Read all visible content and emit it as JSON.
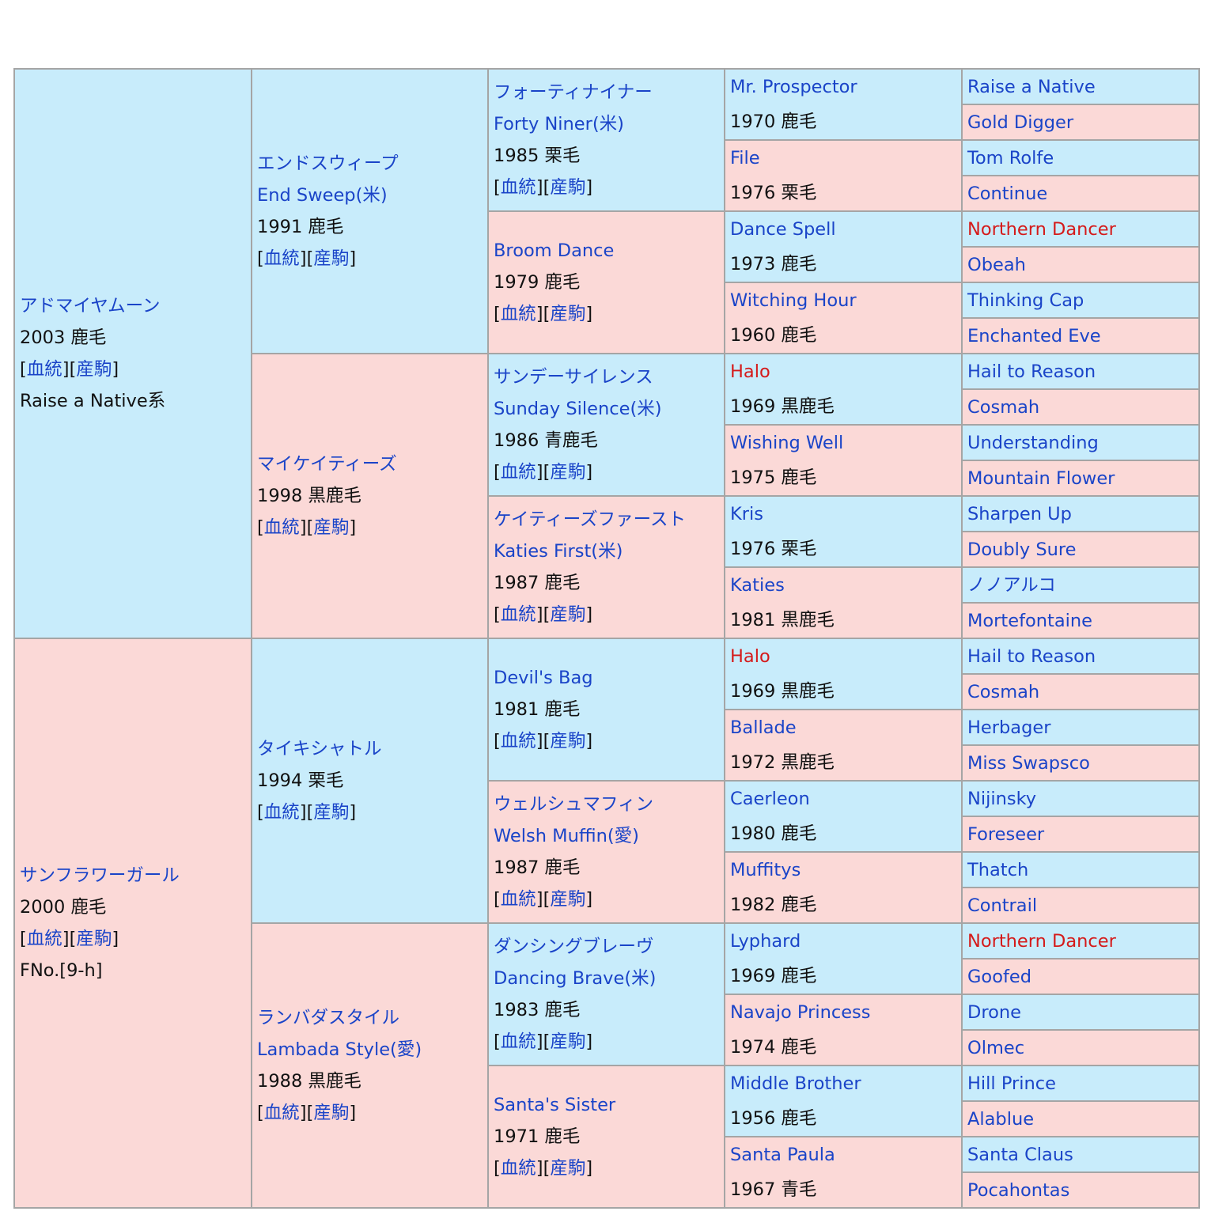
{
  "pedigree": {
    "gen1": [
      {
        "name": "アドマイヤムーン",
        "detail": "2003 鹿毛",
        "extra": "Raise a Native系"
      },
      {
        "name": "サンフラワーガール",
        "detail": "2000 鹿毛",
        "extra": "FNo.[9-h]"
      }
    ],
    "gen2": [
      {
        "name": "エンドスウィープ",
        "alt": "End Sweep(米)",
        "detail": "1991 鹿毛"
      },
      {
        "name": "マイケイティーズ",
        "detail": "1998 黒鹿毛"
      },
      {
        "name": "タイキシャトル",
        "detail": "1994 栗毛"
      },
      {
        "name": "ランバダスタイル",
        "alt": "Lambada Style(愛)",
        "detail": "1988 黒鹿毛"
      }
    ],
    "gen3": [
      {
        "name": "フォーティナイナー",
        "alt": "Forty Niner(米)",
        "detail": "1985 栗毛"
      },
      {
        "name": "Broom Dance",
        "detail": "1979 鹿毛"
      },
      {
        "name": "サンデーサイレンス",
        "alt": "Sunday Silence(米)",
        "detail": "1986 青鹿毛"
      },
      {
        "name": "ケイティーズファースト",
        "alt": "Katies First(米)",
        "detail": "1987 鹿毛"
      },
      {
        "name": "Devil's Bag",
        "detail": "1981 鹿毛"
      },
      {
        "name": "ウェルシュマフィン",
        "alt": "Welsh Muffin(愛)",
        "detail": "1987 鹿毛"
      },
      {
        "name": "ダンシングブレーヴ",
        "alt": "Dancing Brave(米)",
        "detail": "1983 鹿毛"
      },
      {
        "name": "Santa's Sister",
        "detail": "1971 鹿毛"
      }
    ],
    "gen4": [
      {
        "name": "Mr. Prospector",
        "detail": "1970 鹿毛",
        "highlight": false
      },
      {
        "name": "File",
        "detail": "1976 栗毛",
        "highlight": false
      },
      {
        "name": "Dance Spell",
        "detail": "1973 鹿毛",
        "highlight": false
      },
      {
        "name": "Witching Hour",
        "detail": "1960 鹿毛",
        "highlight": false
      },
      {
        "name": "Halo",
        "detail": "1969 黒鹿毛",
        "highlight": true
      },
      {
        "name": "Wishing Well",
        "detail": "1975 鹿毛",
        "highlight": false
      },
      {
        "name": "Kris",
        "detail": "1976 栗毛",
        "highlight": false
      },
      {
        "name": "Katies",
        "detail": "1981 黒鹿毛",
        "highlight": false
      },
      {
        "name": "Halo",
        "detail": "1969 黒鹿毛",
        "highlight": true
      },
      {
        "name": "Ballade",
        "detail": "1972 黒鹿毛",
        "highlight": false
      },
      {
        "name": "Caerleon",
        "detail": "1980 鹿毛",
        "highlight": false
      },
      {
        "name": "Muffitys",
        "detail": "1982 鹿毛",
        "highlight": false
      },
      {
        "name": "Lyphard",
        "detail": "1969 鹿毛",
        "highlight": false
      },
      {
        "name": "Navajo Princess",
        "detail": "1974 鹿毛",
        "highlight": false
      },
      {
        "name": "Middle Brother",
        "detail": "1956 鹿毛",
        "highlight": false
      },
      {
        "name": "Santa Paula",
        "detail": "1967 青毛",
        "highlight": false
      }
    ],
    "gen5": [
      {
        "name": "Raise a Native",
        "highlight": false
      },
      {
        "name": "Gold Digger",
        "highlight": false
      },
      {
        "name": "Tom Rolfe",
        "highlight": false
      },
      {
        "name": "Continue",
        "highlight": false
      },
      {
        "name": "Northern Dancer",
        "highlight": true
      },
      {
        "name": "Obeah",
        "highlight": false
      },
      {
        "name": "Thinking Cap",
        "highlight": false
      },
      {
        "name": "Enchanted Eve",
        "highlight": false
      },
      {
        "name": "Hail to Reason",
        "highlight": false
      },
      {
        "name": "Cosmah",
        "highlight": false
      },
      {
        "name": "Understanding",
        "highlight": false
      },
      {
        "name": "Mountain Flower",
        "highlight": false
      },
      {
        "name": "Sharpen Up",
        "highlight": false
      },
      {
        "name": "Doubly Sure",
        "highlight": false
      },
      {
        "name": "ノノアルコ",
        "highlight": false
      },
      {
        "name": "Mortefontaine",
        "highlight": false
      },
      {
        "name": "Hail to Reason",
        "highlight": false
      },
      {
        "name": "Cosmah",
        "highlight": false
      },
      {
        "name": "Herbager",
        "highlight": false
      },
      {
        "name": "Miss Swapsco",
        "highlight": false
      },
      {
        "name": "Nijinsky",
        "highlight": false
      },
      {
        "name": "Foreseer",
        "highlight": false
      },
      {
        "name": "Thatch",
        "highlight": false
      },
      {
        "name": "Contrail",
        "highlight": false
      },
      {
        "name": "Northern Dancer",
        "highlight": true
      },
      {
        "name": "Goofed",
        "highlight": false
      },
      {
        "name": "Drone",
        "highlight": false
      },
      {
        "name": "Olmec",
        "highlight": false
      },
      {
        "name": "Hill Prince",
        "highlight": false
      },
      {
        "name": "Alablue",
        "highlight": false
      },
      {
        "name": "Santa Claus",
        "highlight": false
      },
      {
        "name": "Pocahontas",
        "highlight": false
      }
    ]
  },
  "links": {
    "bloodline": "血統",
    "progeny": "産駒"
  },
  "colors": {
    "sire_bg": "#c8ecfb",
    "dam_bg": "#fbd9d7",
    "link": "#1a44c8",
    "highlight": "#d51a1a",
    "border": "#a5a5a5"
  }
}
